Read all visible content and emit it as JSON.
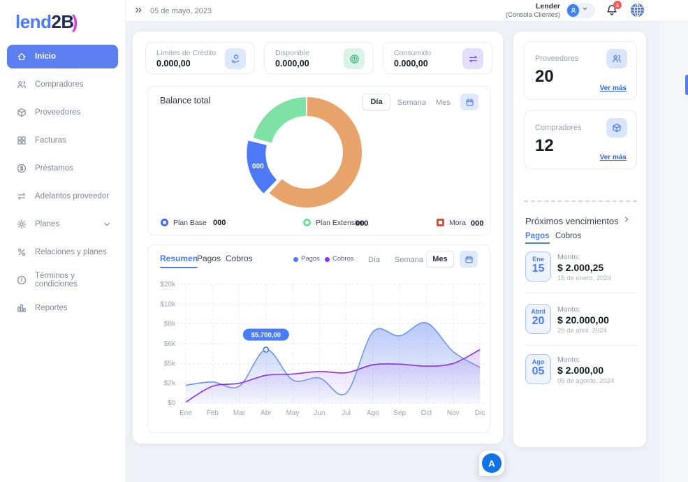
{
  "brand": {
    "text_primary": "lend",
    "text_secondary": "2B",
    "accent_glyph": ")"
  },
  "colors": {
    "accent": "#4a7bf8",
    "sidebar_active": "#5b7ef0",
    "donut_mora": "#e8a36b",
    "donut_plan_base": "#4d79f6",
    "donut_plan_extension": "#7ee2a4",
    "legend_mora": "#e8502a",
    "series_pagos": "#6b97f3",
    "series_cobros": "#8b2ff3",
    "fab": "#1273e6",
    "badge_red": "#f15b5b"
  },
  "topbar": {
    "date": "05 de mayo, 2023",
    "user_name": "Lender",
    "user_role": "(Consola Clientes)",
    "bell_badge": "1"
  },
  "sidebar": {
    "items": [
      {
        "label": "Inicio",
        "icon": "home",
        "active": true
      },
      {
        "label": "Compradores",
        "icon": "people"
      },
      {
        "label": "Proveedores",
        "icon": "cube"
      },
      {
        "label": "Facturas",
        "icon": "grid"
      },
      {
        "label": "Préstamos",
        "icon": "dollar-circle"
      },
      {
        "label": "Adelantos proveedor",
        "icon": "transfer"
      },
      {
        "label": "Planes",
        "icon": "gear",
        "has_chevron": true
      },
      {
        "label": "Relaciones y planes",
        "icon": "percent"
      },
      {
        "label": "Términos y condiciones",
        "icon": "alert-circle"
      },
      {
        "label": "Reportes",
        "icon": "bar-chart"
      }
    ]
  },
  "stats": [
    {
      "label": "Límites de Crédito",
      "value": "0.000,00",
      "icon": "coin-hand"
    },
    {
      "label": "Disponible",
      "value": "0.000,00",
      "icon": "coins"
    },
    {
      "label": "Consumido",
      "value": "0.000,00",
      "icon": "transfer"
    }
  ],
  "balance": {
    "title": "Balance total",
    "period_tabs": [
      "Día",
      "Semana",
      "Mes"
    ],
    "active_period": "Día",
    "legend": [
      {
        "name": "Plan Base",
        "value": "000",
        "marker_color": "#3e6ef4"
      },
      {
        "name": "Plan Extension",
        "value": "000",
        "marker_color": "#6fdc9c"
      },
      {
        "name": "Mora",
        "value": "000",
        "marker_color": "#e8502a"
      }
    ]
  },
  "chart_header": {
    "tabs": [
      "Resumen",
      "Pagos",
      "Cobros"
    ],
    "active_tab": "Resumen",
    "legend": [
      {
        "name": "Pagos",
        "color": "#4a7bf8"
      },
      {
        "name": "Cobros",
        "color": "#8b2ff3"
      }
    ],
    "period_tabs": [
      "Día",
      "Semana",
      "Mes"
    ],
    "active_period": "Mes"
  },
  "chart_data": [
    {
      "type": "donut",
      "title": "Balance total",
      "segments": [
        {
          "name": "Mora",
          "value": 62,
          "color": "#e8a36b",
          "display_value": "000"
        },
        {
          "name": "Plan Base",
          "value": 17,
          "color": "#4d79f6",
          "exploded": true,
          "label": "000",
          "display_value": "000"
        },
        {
          "name": "Plan Extension",
          "value": 21,
          "color": "#7ee2a4",
          "display_value": "000"
        }
      ]
    },
    {
      "type": "area",
      "x": [
        "Ene",
        "Feb",
        "Mar",
        "Abr",
        "May",
        "Jun",
        "Jul",
        "Ago",
        "Sep",
        "Oct",
        "Nov",
        "Dic"
      ],
      "y_ticks": [
        "$20k",
        "$10k",
        "$8k",
        "$6k",
        "$5k",
        "$2k",
        "$0"
      ],
      "y_tick_values": [
        0,
        2000,
        5000,
        6000,
        8000,
        10000,
        20000
      ],
      "ylim": [
        0,
        20000
      ],
      "grid": true,
      "series": [
        {
          "name": "Pagos",
          "color": "#6b97f3",
          "values": [
            1800,
            2200,
            1700,
            5700,
            2500,
            2800,
            1000,
            7200,
            6800,
            8100,
            5600,
            4400
          ]
        },
        {
          "name": "Cobros",
          "color": "#8b2ff3",
          "values": [
            100,
            1700,
            2000,
            3200,
            3400,
            3800,
            3600,
            4800,
            4900,
            4600,
            5000,
            5700
          ]
        }
      ],
      "tooltip": {
        "series": "Pagos",
        "month": "Abr",
        "value": 5700,
        "label": "$5.700,00"
      }
    }
  ],
  "right_panel": {
    "cards": [
      {
        "label": "Proveedores",
        "value": "20",
        "link": "Ver más",
        "icon": "people"
      },
      {
        "label": "Compradores",
        "value": "12",
        "link": "Ver más",
        "icon": "cube"
      }
    ],
    "upcoming": {
      "title": "Próximos vencimientos",
      "tabs": [
        "Pagos",
        "Cobros"
      ],
      "active_tab": "Pagos",
      "items": [
        {
          "month": "Ene",
          "day": "15",
          "label": "Monto:",
          "amount": "$ 2.000,25",
          "date": "15 de enero, 2024"
        },
        {
          "month": "Abril",
          "day": "20",
          "label": "Monto:",
          "amount": "$ 20.000,00",
          "date": "20 de abril, 2024"
        },
        {
          "month": "Ago",
          "day": "05",
          "label": "Monto:",
          "amount": "$ 2.000,00",
          "date": "05 de agosto, 2024"
        }
      ]
    }
  },
  "fab": {
    "label": "A"
  }
}
